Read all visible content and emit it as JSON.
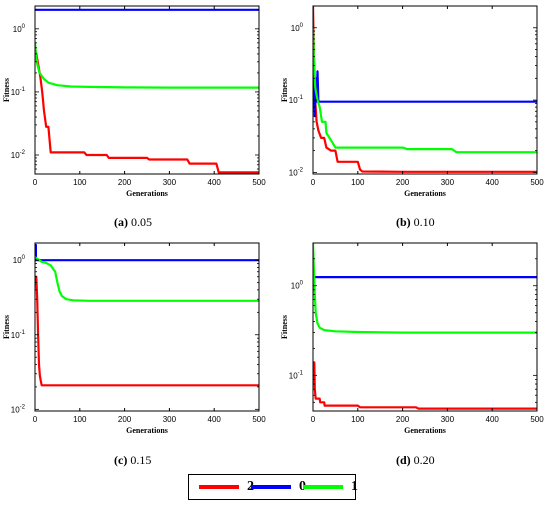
{
  "chart_data": [
    {
      "type": "line",
      "panel": "a",
      "caption_label": "(a)",
      "caption_value": "0.05",
      "xlabel": "Generations",
      "ylabel": "Fitness",
      "xlim": [
        0,
        500
      ],
      "ylim": [
        0.005,
        2.3
      ],
      "yscale": "log",
      "xticks": [
        "0",
        "100",
        "200",
        "300",
        "400",
        "500"
      ],
      "yticks": [
        {
          "v": 1,
          "label": "10^0"
        },
        {
          "v": 0.1,
          "label": "10^-1"
        },
        {
          "v": 0.01,
          "label": "10^-2"
        }
      ],
      "series": [
        {
          "name": "2",
          "color": "#ff0000",
          "points": [
            [
              0,
              0.5
            ],
            [
              3,
              0.4
            ],
            [
              8,
              0.25
            ],
            [
              12,
              0.17
            ],
            [
              16,
              0.1
            ],
            [
              20,
              0.05
            ],
            [
              25,
              0.028
            ],
            [
              30,
              0.028
            ],
            [
              35,
              0.011
            ],
            [
              110,
              0.011
            ],
            [
              115,
              0.01
            ],
            [
              160,
              0.01
            ],
            [
              165,
              0.009
            ],
            [
              250,
              0.009
            ],
            [
              255,
              0.0085
            ],
            [
              340,
              0.0085
            ],
            [
              345,
              0.0073
            ],
            [
              405,
              0.0073
            ],
            [
              410,
              0.0053
            ],
            [
              500,
              0.0053
            ]
          ]
        },
        {
          "name": "0",
          "color": "#0000ff",
          "points": [
            [
              0,
              2.0
            ],
            [
              500,
              2.0
            ]
          ]
        },
        {
          "name": "1",
          "color": "#00ff00",
          "points": [
            [
              0,
              0.6
            ],
            [
              2,
              0.4
            ],
            [
              5,
              0.28
            ],
            [
              10,
              0.2
            ],
            [
              20,
              0.16
            ],
            [
              30,
              0.14
            ],
            [
              50,
              0.128
            ],
            [
              80,
              0.122
            ],
            [
              120,
              0.12
            ],
            [
              200,
              0.118
            ],
            [
              300,
              0.117
            ],
            [
              500,
              0.117
            ]
          ]
        }
      ]
    },
    {
      "type": "line",
      "panel": "b",
      "caption_label": "(b)",
      "caption_value": "0.10",
      "xlabel": "Generations",
      "ylabel": "Fitness",
      "xlim": [
        0,
        500
      ],
      "ylim": [
        0.0095,
        2.0
      ],
      "yscale": "log",
      "xticks": [
        "0",
        "100",
        "200",
        "300",
        "400",
        "500"
      ],
      "yticks": [
        {
          "v": 1,
          "label": "10^0"
        },
        {
          "v": 0.1,
          "label": "10^-1"
        },
        {
          "v": 0.01,
          "label": "10^-2"
        }
      ],
      "series": [
        {
          "name": "2",
          "color": "#ff0000",
          "points": [
            [
              0,
              2.0
            ],
            [
              2,
              0.4
            ],
            [
              4,
              0.12
            ],
            [
              8,
              0.05
            ],
            [
              12,
              0.038
            ],
            [
              18,
              0.03
            ],
            [
              25,
              0.03
            ],
            [
              30,
              0.022
            ],
            [
              40,
              0.02
            ],
            [
              50,
              0.02
            ],
            [
              55,
              0.014
            ],
            [
              100,
              0.014
            ],
            [
              105,
              0.011
            ],
            [
              110,
              0.0103
            ],
            [
              200,
              0.0102
            ],
            [
              500,
              0.0102
            ]
          ]
        },
        {
          "name": "0",
          "color": "#0000ff",
          "points": [
            [
              0,
              0.09
            ],
            [
              2,
              0.25
            ],
            [
              4,
              0.06
            ],
            [
              6,
              0.2
            ],
            [
              8,
              0.095
            ],
            [
              10,
              0.25
            ],
            [
              12,
              0.095
            ],
            [
              500,
              0.095
            ]
          ]
        },
        {
          "name": "1",
          "color": "#00ff00",
          "points": [
            [
              0,
              1.0
            ],
            [
              2,
              0.4
            ],
            [
              5,
              0.15
            ],
            [
              10,
              0.1
            ],
            [
              15,
              0.08
            ],
            [
              20,
              0.05
            ],
            [
              28,
              0.05
            ],
            [
              30,
              0.035
            ],
            [
              40,
              0.028
            ],
            [
              50,
              0.022
            ],
            [
              200,
              0.022
            ],
            [
              210,
              0.021
            ],
            [
              310,
              0.021
            ],
            [
              320,
              0.019
            ],
            [
              500,
              0.019
            ]
          ]
        }
      ]
    },
    {
      "type": "line",
      "panel": "c",
      "caption_label": "(c)",
      "caption_value": "0.15",
      "xlabel": "Generations",
      "ylabel": "Fitness",
      "xlim": [
        0,
        500
      ],
      "ylim": [
        0.0095,
        1.7
      ],
      "yscale": "log",
      "xticks": [
        "0",
        "100",
        "200",
        "300",
        "400",
        "500"
      ],
      "yticks": [
        {
          "v": 1,
          "label": "10^0"
        },
        {
          "v": 0.1,
          "label": "10^-1"
        },
        {
          "v": 0.01,
          "label": "10^-2"
        }
      ],
      "series": [
        {
          "name": "2",
          "color": "#ff0000",
          "points": [
            [
              0,
              0.6
            ],
            [
              3,
              0.6
            ],
            [
              5,
              0.3
            ],
            [
              7,
              0.1
            ],
            [
              9,
              0.04
            ],
            [
              11,
              0.028
            ],
            [
              13,
              0.024
            ],
            [
              15,
              0.021
            ],
            [
              500,
              0.021
            ]
          ]
        },
        {
          "name": "0",
          "color": "#0000ff",
          "points": [
            [
              0,
              1.6
            ],
            [
              2,
              1.6
            ],
            [
              2,
              1.0
            ],
            [
              500,
              1.0
            ]
          ]
        },
        {
          "name": "1",
          "color": "#00ff00",
          "points": [
            [
              0,
              1.1
            ],
            [
              5,
              1.05
            ],
            [
              15,
              0.95
            ],
            [
              25,
              0.92
            ],
            [
              35,
              0.85
            ],
            [
              45,
              0.7
            ],
            [
              50,
              0.5
            ],
            [
              55,
              0.38
            ],
            [
              60,
              0.33
            ],
            [
              70,
              0.3
            ],
            [
              85,
              0.29
            ],
            [
              120,
              0.285
            ],
            [
              500,
              0.285
            ]
          ]
        }
      ]
    },
    {
      "type": "line",
      "panel": "d",
      "caption_label": "(d)",
      "caption_value": "0.20",
      "xlabel": "Generations",
      "ylabel": "Fitness",
      "xlim": [
        0,
        500
      ],
      "ylim": [
        0.04,
        3.0
      ],
      "yscale": "log",
      "xticks": [
        "0",
        "100",
        "200",
        "300",
        "400",
        "500"
      ],
      "yticks": [
        {
          "v": 1,
          "label": "10^0"
        },
        {
          "v": 0.1,
          "label": "10^-1"
        }
      ],
      "series": [
        {
          "name": "2",
          "color": "#ff0000",
          "points": [
            [
              0,
              0.14
            ],
            [
              3,
              0.14
            ],
            [
              4,
              0.07
            ],
            [
              6,
              0.055
            ],
            [
              15,
              0.055
            ],
            [
              16,
              0.05
            ],
            [
              25,
              0.05
            ],
            [
              26,
              0.046
            ],
            [
              100,
              0.046
            ],
            [
              105,
              0.044
            ],
            [
              230,
              0.044
            ],
            [
              235,
              0.0425
            ],
            [
              500,
              0.0425
            ]
          ]
        },
        {
          "name": "0",
          "color": "#0000ff",
          "points": [
            [
              0,
              1.25
            ],
            [
              500,
              1.25
            ]
          ]
        },
        {
          "name": "1",
          "color": "#00ff00",
          "points": [
            [
              0,
              3.0
            ],
            [
              2,
              1.5
            ],
            [
              4,
              0.8
            ],
            [
              6,
              0.5
            ],
            [
              10,
              0.38
            ],
            [
              15,
              0.34
            ],
            [
              25,
              0.32
            ],
            [
              50,
              0.31
            ],
            [
              100,
              0.305
            ],
            [
              200,
              0.3
            ],
            [
              500,
              0.3
            ]
          ]
        }
      ]
    }
  ],
  "legend": [
    {
      "label": "2",
      "color": "#ff0000"
    },
    {
      "label": "0",
      "color": "#0000ff"
    },
    {
      "label": "1",
      "color": "#00ff00"
    }
  ]
}
